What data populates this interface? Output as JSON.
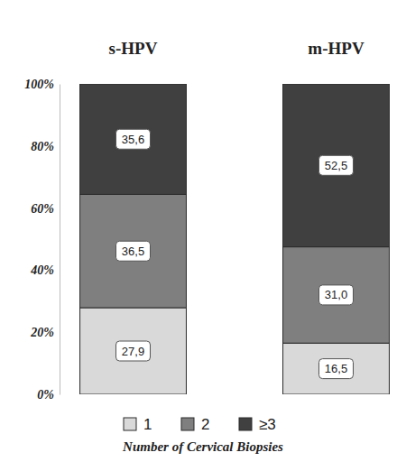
{
  "chart_data": {
    "type": "bar",
    "stacked": true,
    "data_labels": true,
    "grid": false,
    "legend": "bottom",
    "legend_title": "Number of Cervical Biopsies",
    "categories": [
      "s-HPV",
      "m-HPV"
    ],
    "series": [
      {
        "name": "1",
        "color": "#d9d9d9",
        "values": [
          27.9,
          16.5
        ],
        "value_labels": [
          "27,9",
          "16,5"
        ]
      },
      {
        "name": "2",
        "color": "#7f7f7f",
        "values": [
          36.5,
          31.0
        ],
        "value_labels": [
          "36,5",
          "31,0"
        ]
      },
      {
        "name": "≥3",
        "color": "#404040",
        "values": [
          35.6,
          52.5
        ],
        "value_labels": [
          "35,6",
          "52,5"
        ]
      }
    ],
    "ylim": [
      0,
      100
    ],
    "yticks": [
      {
        "value": 0,
        "label": "0%"
      },
      {
        "value": 20,
        "label": "20%"
      },
      {
        "value": 40,
        "label": "40%"
      },
      {
        "value": 60,
        "label": "60%"
      },
      {
        "value": 80,
        "label": "80%"
      },
      {
        "value": 100,
        "label": "100%"
      }
    ]
  }
}
